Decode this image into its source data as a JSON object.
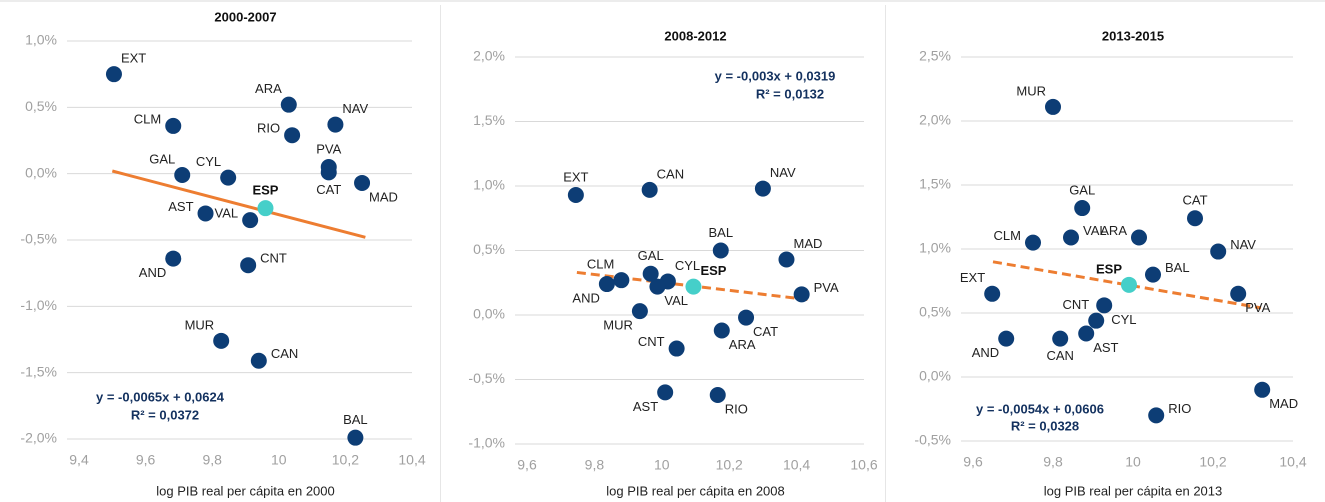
{
  "chart_data": [
    {
      "type": "scatter",
      "title": "2000-2007",
      "xlabel": "log PIB real per cápita en 2000",
      "xlim": [
        9.4,
        10.4
      ],
      "xticks": [
        {
          "value": 9.4,
          "label": "9,4"
        },
        {
          "value": 9.6,
          "label": "9,6"
        },
        {
          "value": 9.8,
          "label": "9,8"
        },
        10,
        {
          "value": 10.2,
          "label": "10,2"
        },
        {
          "value": 10.4,
          "label": "10,4"
        }
      ],
      "ylim": [
        -2.0,
        1.0
      ],
      "yticks": [
        {
          "value": -2.0,
          "label": "-2,0%"
        },
        {
          "value": -1.5,
          "label": "-1,5%"
        },
        {
          "value": -1.0,
          "label": "-1,0%"
        },
        {
          "value": -0.5,
          "label": "-0,5%"
        },
        {
          "value": 0,
          "label": "0,0%"
        },
        {
          "value": 0.5,
          "label": "0,5%"
        },
        {
          "value": 1.0,
          "label": "1,0%"
        }
      ],
      "grid": true,
      "color": "#0d3d75",
      "labels": [
        "EXT",
        "CLM",
        "GAL",
        "CYL",
        "AST",
        "AND",
        "VAL",
        "CNT",
        "MUR",
        "CAN",
        "ARA",
        "RIO",
        "NAV",
        "PVA",
        "CAT",
        "MAD",
        "BAL"
      ],
      "x": [
        9.505,
        9.683,
        9.71,
        9.848,
        9.78,
        9.683,
        9.914,
        9.908,
        9.827,
        9.94,
        10.03,
        10.04,
        10.17,
        10.15,
        10.15,
        10.25,
        10.23
      ],
      "values": [
        0.75,
        0.36,
        -0.01,
        -0.03,
        -0.3,
        -0.64,
        -0.35,
        -0.69,
        -1.26,
        -1.41,
        0.52,
        0.29,
        0.37,
        0.05,
        0.01,
        -0.07,
        -1.99
      ],
      "reference_point": {
        "label": "ESP",
        "x": 9.96,
        "value": -0.26,
        "color": "#45cfc9"
      },
      "trendline": {
        "x": [
          9.5,
          10.26
        ],
        "values": [
          0.02,
          -0.48
        ],
        "color": "#ed7d31",
        "dashed": false
      },
      "equation": "y = -0,0065x + 0,0624",
      "r2": "R² = 0,0372"
    },
    {
      "type": "scatter",
      "title": "2008-2012",
      "xlabel": "log PIB real per cápita en 2008",
      "xlim": [
        9.6,
        10.6
      ],
      "xticks": [
        {
          "value": 9.6,
          "label": "9,6"
        },
        {
          "value": 9.8,
          "label": "9,8"
        },
        10,
        {
          "value": 10.2,
          "label": "10,2"
        },
        {
          "value": 10.4,
          "label": "10,4"
        },
        {
          "value": 10.6,
          "label": "10,6"
        }
      ],
      "ylim": [
        -1.0,
        2.0
      ],
      "yticks": [
        {
          "value": -1.0,
          "label": "-1,0%"
        },
        {
          "value": -0.5,
          "label": "-0,5%"
        },
        {
          "value": 0,
          "label": "0,0%"
        },
        {
          "value": 0.5,
          "label": "0,5%"
        },
        {
          "value": 1.0,
          "label": "1,0%"
        },
        {
          "value": 1.5,
          "label": "1,5%"
        },
        {
          "value": 2.0,
          "label": "2,0%"
        }
      ],
      "grid": true,
      "color": "#0d3d75",
      "labels": [
        "EXT",
        "CAN",
        "NAV",
        "BAL",
        "MAD",
        "AND",
        "CLM",
        "GAL",
        "CYL",
        "VAL",
        "PVA",
        "MUR",
        "CAT",
        "ARA",
        "CNT",
        "AST",
        "RIO"
      ],
      "x": [
        9.745,
        9.964,
        10.3,
        10.175,
        10.37,
        9.837,
        9.88,
        9.967,
        10.018,
        9.987,
        10.415,
        9.935,
        10.25,
        10.178,
        10.044,
        10.01,
        10.166
      ],
      "values": [
        0.93,
        0.97,
        0.98,
        0.5,
        0.43,
        0.24,
        0.27,
        0.32,
        0.26,
        0.22,
        0.16,
        0.03,
        -0.02,
        -0.12,
        -0.26,
        -0.6,
        -0.62
      ],
      "reference_point": {
        "label": "ESP",
        "x": 10.094,
        "value": 0.22,
        "color": "#45cfc9"
      },
      "trendline": {
        "x": [
          9.748,
          10.432
        ],
        "values": [
          0.33,
          0.12
        ],
        "color": "#ed7d31",
        "dashed": true
      },
      "equation": "y = -0,003x + 0,0319",
      "r2": "R² = 0,0132"
    },
    {
      "type": "scatter",
      "title": "2013-2015",
      "xlabel": "log PIB real per cápita en 2013",
      "xlim": [
        9.6,
        10.4
      ],
      "xticks": [
        {
          "value": 9.6,
          "label": "9,6"
        },
        {
          "value": 9.8,
          "label": "9,8"
        },
        10,
        {
          "value": 10.2,
          "label": "10,2"
        },
        {
          "value": 10.4,
          "label": "10,4"
        }
      ],
      "ylim": [
        -0.5,
        2.5
      ],
      "yticks": [
        {
          "value": -0.5,
          "label": "-0,5%"
        },
        {
          "value": 0,
          "label": "0,0%"
        },
        {
          "value": 0.5,
          "label": "0,5%"
        },
        {
          "value": 1.0,
          "label": "1,0%"
        },
        {
          "value": 1.5,
          "label": "1,5%"
        },
        {
          "value": 2.0,
          "label": "2,0%"
        },
        {
          "value": 2.5,
          "label": "2,5%"
        }
      ],
      "grid": true,
      "color": "#0d3d75",
      "labels": [
        "MUR",
        "GAL",
        "CAT",
        "CLM",
        "VAL",
        "ARA",
        "NAV",
        "BAL",
        "PVA",
        "EXT",
        "CYL",
        "CNT",
        "AST",
        "CAN",
        "AND",
        "RIO",
        "MAD"
      ],
      "x": [
        9.8,
        9.873,
        10.155,
        9.75,
        9.845,
        10.015,
        10.213,
        10.05,
        10.263,
        9.648,
        9.928,
        9.908,
        9.883,
        9.818,
        9.683,
        10.058,
        10.323
      ],
      "values": [
        2.11,
        1.32,
        1.24,
        1.05,
        1.09,
        1.09,
        0.98,
        0.8,
        0.65,
        0.65,
        0.56,
        0.44,
        0.34,
        0.3,
        0.3,
        -0.3,
        -0.1
      ],
      "reference_point": {
        "label": "ESP",
        "x": 9.99,
        "value": 0.72,
        "color": "#45cfc9"
      },
      "trendline": {
        "x": [
          9.65,
          10.32
        ],
        "values": [
          0.9,
          0.54
        ],
        "color": "#ed7d31",
        "dashed": true
      },
      "equation": "y = -0,0054x + 0,0606",
      "r2": "R² = 0,0328"
    }
  ]
}
